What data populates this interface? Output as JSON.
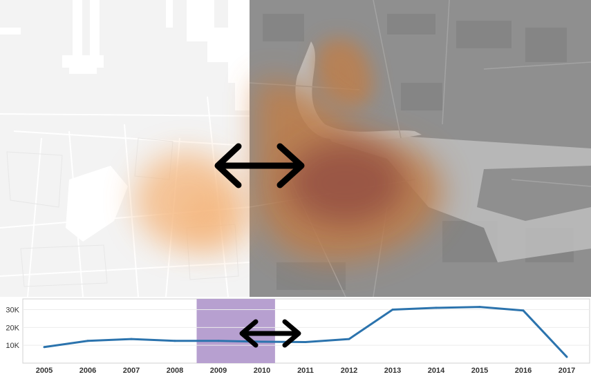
{
  "map": {
    "basemap_light": "#f1f1f1",
    "basemap_dark": "#9a9a9a",
    "water_light": "#ffffff",
    "water_dark": "#d6d6d6",
    "heat_colors": [
      "#f3a35a",
      "#d98440",
      "#9b3f36"
    ],
    "divider_icon": "double-arrow-icon"
  },
  "timeline": {
    "selection_color": "#b7a0d0",
    "line_color": "#2b73ad",
    "divider_icon": "double-arrow-icon"
  },
  "chart_data": {
    "type": "line",
    "categories": [
      "2005",
      "2006",
      "2007",
      "2008",
      "2009",
      "2010",
      "2011",
      "2012",
      "2013",
      "2014",
      "2015",
      "2016",
      "2017"
    ],
    "values": [
      9000,
      12500,
      13500,
      12500,
      12500,
      12000,
      11800,
      13500,
      30000,
      31000,
      31500,
      29500,
      3500
    ],
    "y_ticks": [
      "10K",
      "20K",
      "30K"
    ],
    "y_tick_values": [
      10000,
      20000,
      30000
    ],
    "ylim": [
      0,
      36000
    ],
    "selected_range": [
      "2008.5",
      "2010.3"
    ],
    "title": "",
    "xlabel": "",
    "ylabel": ""
  }
}
